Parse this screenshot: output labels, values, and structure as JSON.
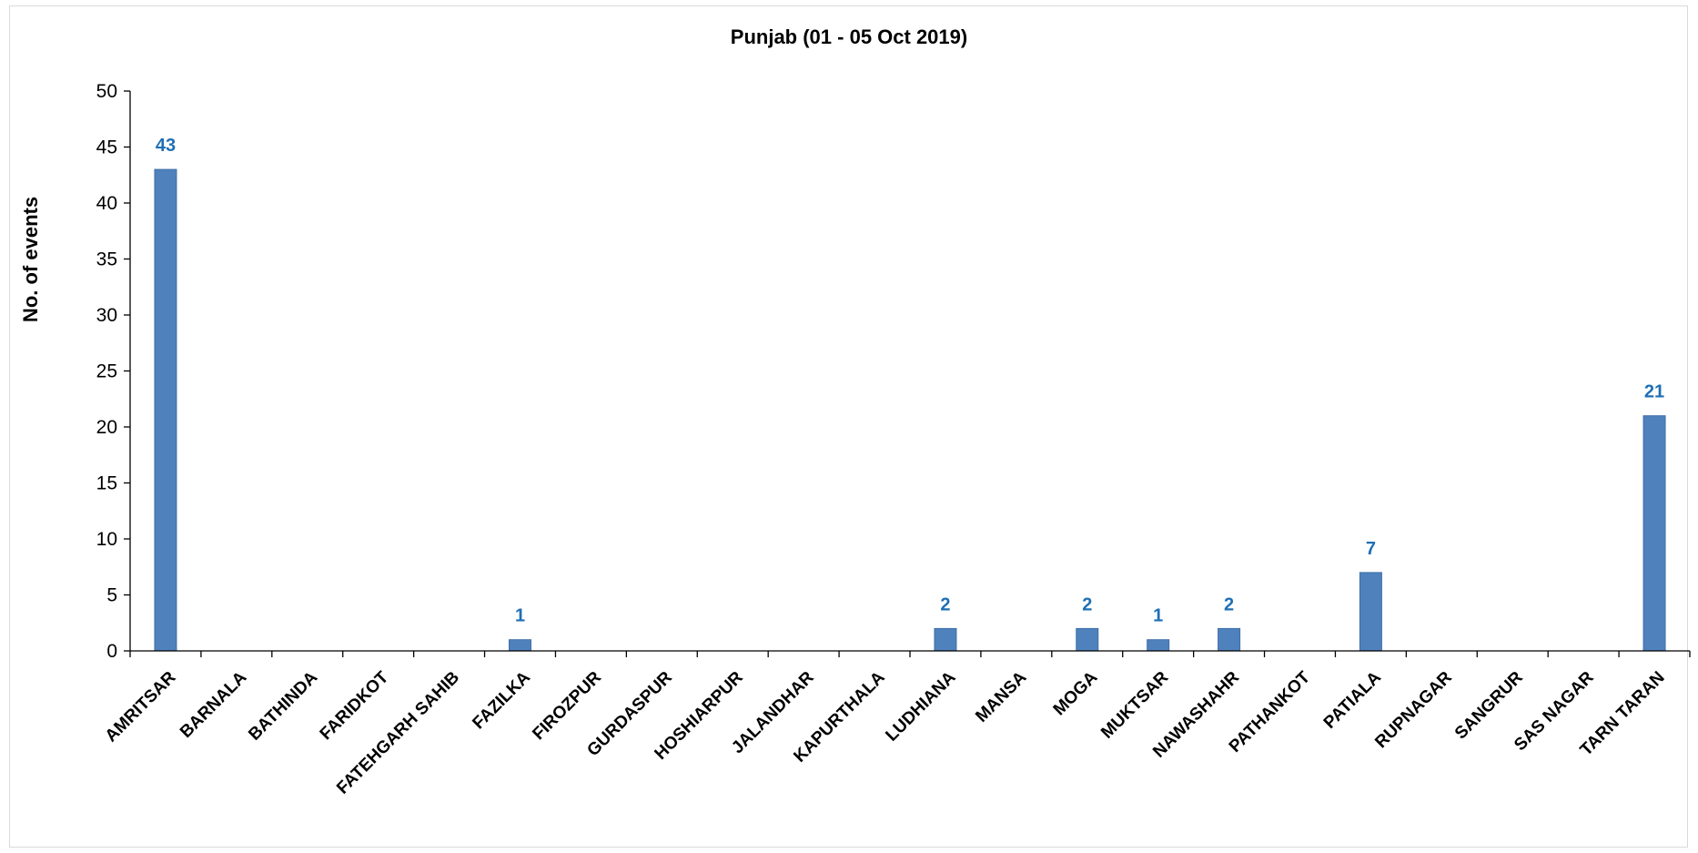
{
  "chart_data": {
    "type": "bar",
    "title": "Punjab (01 - 05 Oct 2019)",
    "xlabel": "",
    "ylabel": "No. of events",
    "ylim": [
      0,
      50
    ],
    "yticks": [
      0,
      5,
      10,
      15,
      20,
      25,
      30,
      35,
      40,
      45,
      50
    ],
    "categories": [
      "AMRITSAR",
      "BARNALA",
      "BATHINDA",
      "FARIDKOT",
      "FATEHGARH SAHIB",
      "FAZILKA",
      "FIROZPUR",
      "GURDASPUR",
      "HOSHIARPUR",
      "JALANDHAR",
      "KAPURTHALA",
      "LUDHIANA",
      "MANSA",
      "MOGA",
      "MUKTSAR",
      "NAWASHAHR",
      "PATHANKOT",
      "PATIALA",
      "RUPNAGAR",
      "SANGRUR",
      "SAS NAGAR",
      "TARN TARAN"
    ],
    "values": [
      43,
      0,
      0,
      0,
      0,
      1,
      0,
      0,
      0,
      0,
      0,
      2,
      0,
      2,
      1,
      2,
      0,
      7,
      0,
      0,
      0,
      21
    ],
    "data_labels": [
      "43",
      "",
      "",
      "",
      "",
      "1",
      "",
      "",
      "",
      "",
      "",
      "2",
      "",
      "2",
      "1",
      "2",
      "",
      "7",
      "",
      "",
      "",
      "21"
    ],
    "grid": false,
    "legend": "none",
    "colors": {
      "bar": "#4f81bd",
      "bar_stroke": "#3f6ea6",
      "data_label": "#1f6fb4",
      "axis": "#000000",
      "border": "#d9d9d9"
    }
  }
}
